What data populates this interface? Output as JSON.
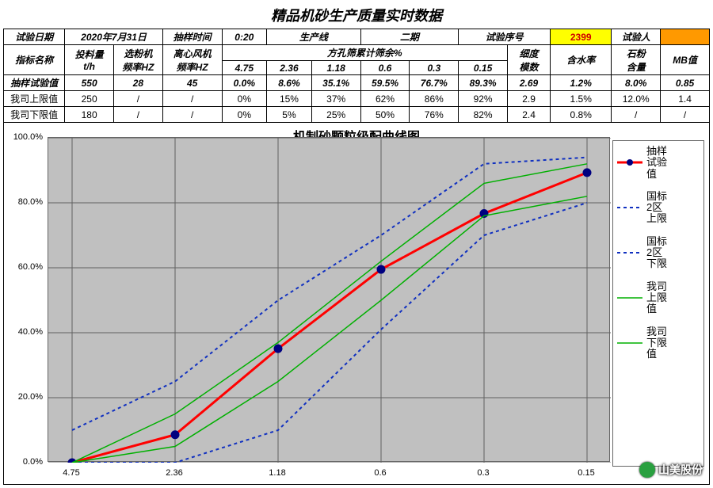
{
  "title": "精品机砂生产质量实时数据",
  "header_row": {
    "labels": {
      "test_date": "试验日期",
      "sample_time": "抽样时间",
      "prod_line": "生产线",
      "test_no": "试验序号",
      "tester": "试验人"
    },
    "values": {
      "test_date": "2020年7月31日",
      "sample_time": "0:20",
      "prod_line": "二期",
      "test_no": "2399",
      "tester": ""
    }
  },
  "columns": {
    "name": "指标名称",
    "feed": "投料量\nt/h",
    "powder_hz": "选粉机\n频率HZ",
    "fan_hz": "离心风机\n频率HZ",
    "sieve_group": "方孔筛累计筛余%",
    "sieve_sizes": [
      "4.75",
      "2.36",
      "1.18",
      "0.6",
      "0.3",
      "0.15"
    ],
    "fineness": "细度\n模数",
    "water": "含水率",
    "stone": "石粉\n含量",
    "mb": "MB值"
  },
  "rows": [
    {
      "name": "抽样试验值",
      "feed": "550",
      "powder_hz": "28",
      "fan_hz": "45",
      "sieve": [
        "0.0%",
        "8.6%",
        "35.1%",
        "59.5%",
        "76.7%",
        "89.3%"
      ],
      "fineness": "2.69",
      "water": "1.2%",
      "stone": "8.0%",
      "mb": "0.85",
      "bold": true
    },
    {
      "name": "我司上限值",
      "feed": "250",
      "powder_hz": "/",
      "fan_hz": "/",
      "sieve": [
        "0%",
        "15%",
        "37%",
        "62%",
        "86%",
        "92%"
      ],
      "fineness": "2.9",
      "water": "1.5%",
      "stone": "12.0%",
      "mb": "1.4",
      "bold": false
    },
    {
      "name": "我司下限值",
      "feed": "180",
      "powder_hz": "/",
      "fan_hz": "/",
      "sieve": [
        "0%",
        "5%",
        "25%",
        "50%",
        "76%",
        "82%"
      ],
      "fineness": "2.4",
      "water": "0.8%",
      "stone": "/",
      "mb": "/",
      "bold": false
    }
  ],
  "chart": {
    "title": "机制砂颗粒级配曲线图",
    "x_categories": [
      "4.75",
      "2.36",
      "1.18",
      "0.6",
      "0.3",
      "0.15"
    ],
    "y_ticks": [
      0,
      20,
      40,
      60,
      80,
      100
    ],
    "y_tick_labels": [
      "0.0%",
      "20.0%",
      "40.0%",
      "60.0%",
      "80.0%",
      "100.0%"
    ],
    "ylim": [
      0,
      100
    ],
    "plot_bg": "#c0c0c0",
    "grid_color": "#606060",
    "series": [
      {
        "name": "抽样\n试验\n值",
        "color": "#ff0000",
        "width": 3,
        "marker": "circle",
        "marker_color": "#000080",
        "dash": "none",
        "y": [
          0.0,
          8.6,
          35.1,
          59.5,
          76.7,
          89.3
        ]
      },
      {
        "name": "国标\n2区\n上限",
        "color": "#1030c0",
        "width": 2,
        "marker": "none",
        "dash": "4,4",
        "y": [
          10,
          25,
          50,
          70,
          92,
          94
        ]
      },
      {
        "name": "国标\n2区\n下限",
        "color": "#1030c0",
        "width": 2,
        "marker": "none",
        "dash": "4,4",
        "y": [
          0,
          0,
          10,
          41,
          70,
          80
        ]
      },
      {
        "name": "我司\n上限\n值",
        "color": "#00b000",
        "width": 1.5,
        "marker": "none",
        "dash": "none",
        "y": [
          0,
          15,
          37,
          62,
          86,
          92
        ]
      },
      {
        "name": "我司\n下限\n值",
        "color": "#00b000",
        "width": 1.5,
        "marker": "none",
        "dash": "none",
        "y": [
          0,
          5,
          25,
          50,
          76,
          82
        ]
      }
    ]
  },
  "watermark": "山美股份"
}
